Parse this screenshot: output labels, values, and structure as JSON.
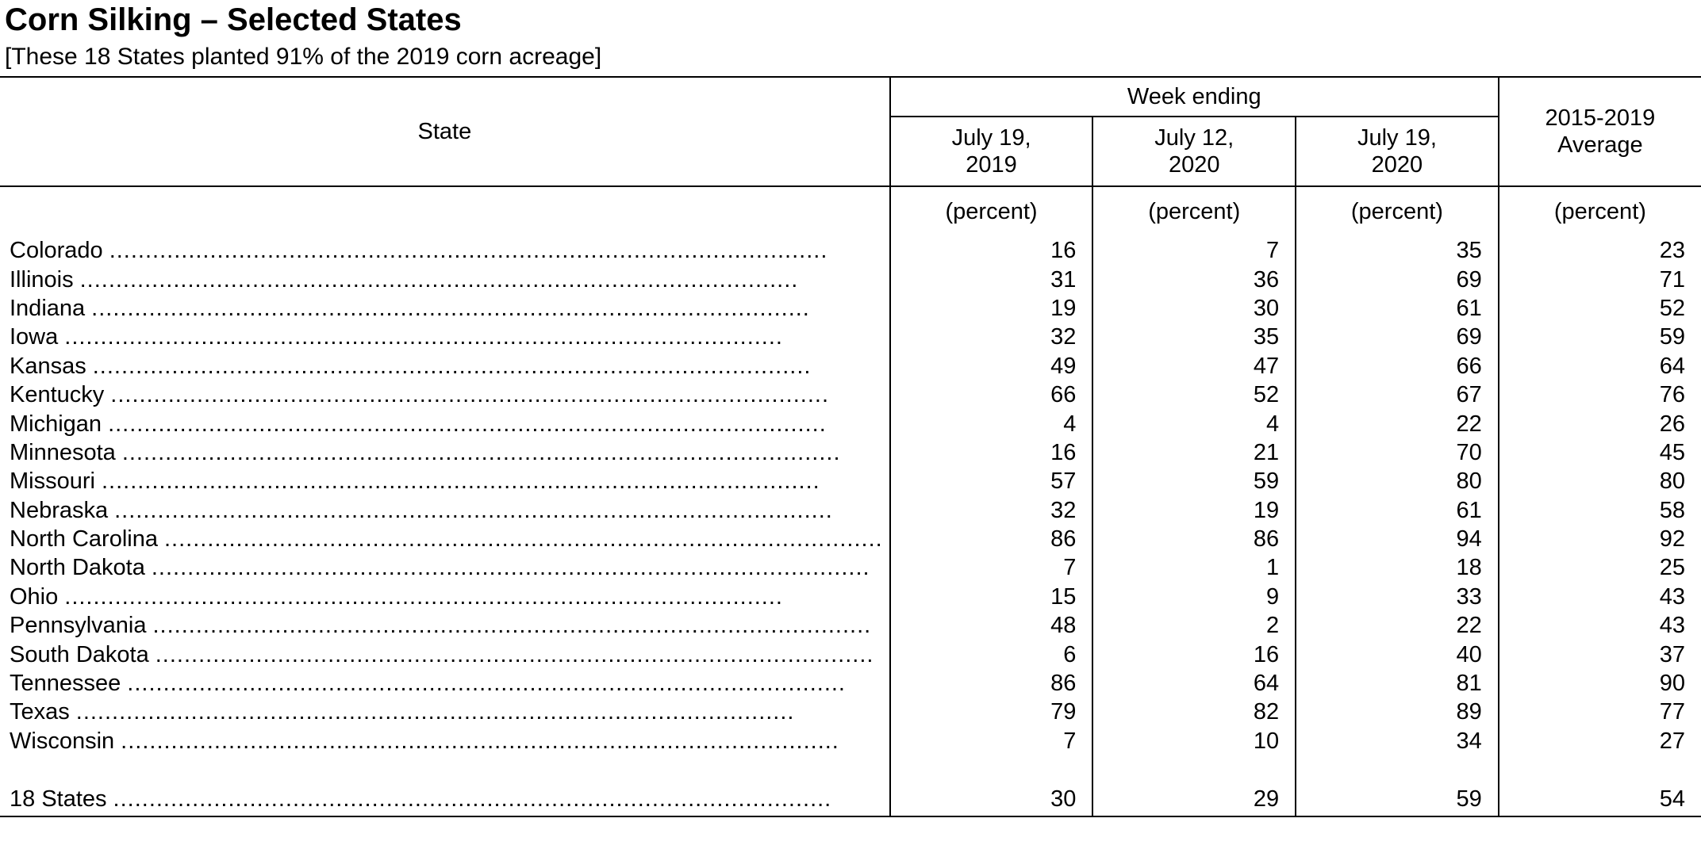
{
  "title": "Corn Silking – Selected States",
  "subtitle": "[These 18 States planted 91% of the 2019 corn acreage]",
  "table": {
    "state_header": "State",
    "group_header": "Week ending",
    "columns": [
      {
        "line1": "July 19,",
        "line2": "2019"
      },
      {
        "line1": "July 12,",
        "line2": "2020"
      },
      {
        "line1": "July 19,",
        "line2": "2020"
      }
    ],
    "average_header": {
      "line1": "2015-2019",
      "line2": "Average"
    },
    "unit": "(percent)",
    "rows": [
      {
        "state": "Colorado",
        "values": [
          "16",
          "7",
          "35",
          "23"
        ]
      },
      {
        "state": "Illinois",
        "values": [
          "31",
          "36",
          "69",
          "71"
        ]
      },
      {
        "state": "Indiana",
        "values": [
          "19",
          "30",
          "61",
          "52"
        ]
      },
      {
        "state": "Iowa",
        "values": [
          "32",
          "35",
          "69",
          "59"
        ]
      },
      {
        "state": "Kansas",
        "values": [
          "49",
          "47",
          "66",
          "64"
        ]
      },
      {
        "state": "Kentucky",
        "values": [
          "66",
          "52",
          "67",
          "76"
        ]
      },
      {
        "state": "Michigan",
        "values": [
          "4",
          "4",
          "22",
          "26"
        ]
      },
      {
        "state": "Minnesota",
        "values": [
          "16",
          "21",
          "70",
          "45"
        ]
      },
      {
        "state": "Missouri",
        "values": [
          "57",
          "59",
          "80",
          "80"
        ]
      },
      {
        "state": "Nebraska",
        "values": [
          "32",
          "19",
          "61",
          "58"
        ]
      },
      {
        "state": "North Carolina",
        "values": [
          "86",
          "86",
          "94",
          "92"
        ]
      },
      {
        "state": "North Dakota",
        "values": [
          "7",
          "1",
          "18",
          "25"
        ]
      },
      {
        "state": "Ohio",
        "values": [
          "15",
          "9",
          "33",
          "43"
        ]
      },
      {
        "state": "Pennsylvania",
        "values": [
          "48",
          "2",
          "22",
          "43"
        ]
      },
      {
        "state": "South Dakota",
        "values": [
          "6",
          "16",
          "40",
          "37"
        ]
      },
      {
        "state": "Tennessee",
        "values": [
          "86",
          "64",
          "81",
          "90"
        ]
      },
      {
        "state": "Texas",
        "values": [
          "79",
          "82",
          "89",
          "77"
        ]
      },
      {
        "state": "Wisconsin",
        "values": [
          "7",
          "10",
          "34",
          "27"
        ]
      }
    ],
    "total": {
      "state": "18 States",
      "values": [
        "30",
        "29",
        "59",
        "54"
      ]
    }
  }
}
